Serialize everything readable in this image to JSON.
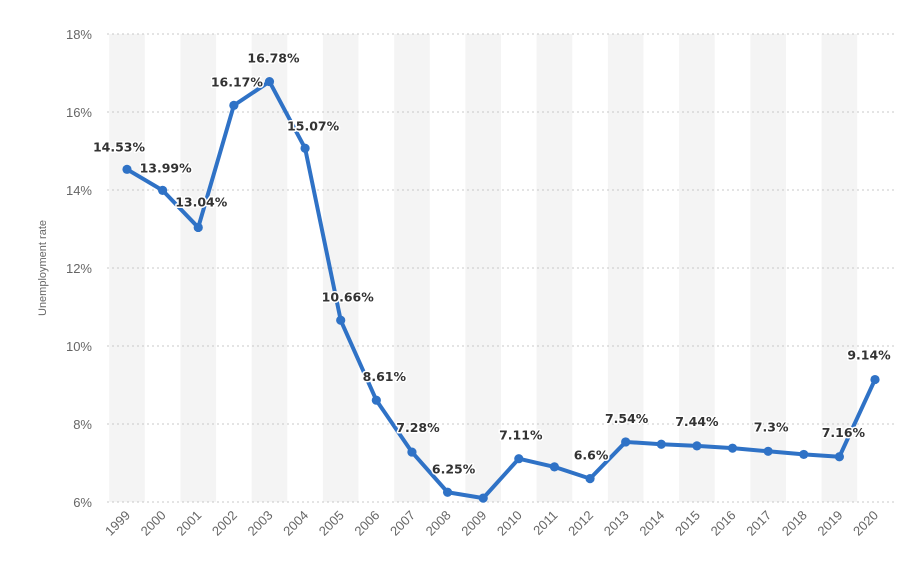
{
  "chart_data": {
    "type": "line",
    "title": "",
    "xlabel": "",
    "ylabel": "Unemployment rate",
    "categories": [
      "1999",
      "2000",
      "2001",
      "2002",
      "2003",
      "2004",
      "2005",
      "2006",
      "2007",
      "2008",
      "2009",
      "2010",
      "2011",
      "2012",
      "2013",
      "2014",
      "2015",
      "2016",
      "2017",
      "2018",
      "2019",
      "2020"
    ],
    "series": [
      {
        "name": "Unemployment rate",
        "values": [
          14.53,
          13.99,
          13.04,
          16.17,
          16.78,
          15.07,
          10.66,
          8.61,
          7.28,
          6.25,
          6.1,
          7.11,
          6.9,
          6.6,
          7.54,
          7.48,
          7.44,
          7.38,
          7.3,
          7.22,
          7.16,
          9.14
        ],
        "data_labels": {
          "1999": "14.53%",
          "2000": "13.99%",
          "2001": "13.04%",
          "2002": "16.17%",
          "2003": "16.78%",
          "2004": "15.07%",
          "2005": "10.66%",
          "2006": "8.61%",
          "2007": "7.28%",
          "2008": "6.25%",
          "2010": "7.11%",
          "2012": "6.6%",
          "2013": "7.54%",
          "2015": "7.44%",
          "2017": "7.3%",
          "2019": "7.16%",
          "2020": "9.14%"
        }
      }
    ],
    "y_ticks": [
      6,
      8,
      10,
      12,
      14,
      16,
      18
    ],
    "y_tick_labels": [
      "6%",
      "8%",
      "10%",
      "12%",
      "14%",
      "16%",
      "18%"
    ],
    "ylim": [
      6,
      18
    ],
    "grid": true,
    "line_color": "#2f72c6"
  }
}
